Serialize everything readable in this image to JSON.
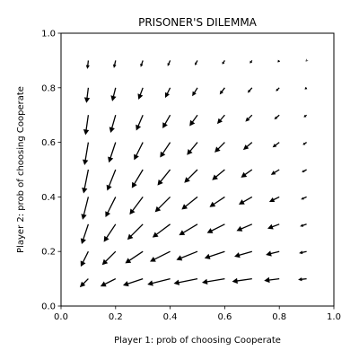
{
  "chart_data": {
    "type": "quiver",
    "title": "PRISONER'S DILEMMA",
    "xlabel": "Player 1: prob of choosing Cooperate",
    "ylabel": "Player 2: prob of choosing Cooperate",
    "xlim": [
      0.0,
      1.0
    ],
    "ylim": [
      0.0,
      1.0
    ],
    "xticks": [
      "0.0",
      "0.2",
      "0.4",
      "0.6",
      "0.8",
      "1.0"
    ],
    "yticks": [
      "0.0",
      "0.2",
      "0.4",
      "0.6",
      "0.8",
      "1.0"
    ],
    "grid": false,
    "arrow_color": "#000000",
    "x": [
      0.1,
      0.2,
      0.3,
      0.4,
      0.5,
      0.6,
      0.7,
      0.8,
      0.9
    ],
    "y": [
      0.1,
      0.2,
      0.3,
      0.4,
      0.5,
      0.6,
      0.7,
      0.8,
      0.9
    ],
    "field": "dx = x(1-x)(y-1), dy = y(1-y)(x-1)"
  }
}
